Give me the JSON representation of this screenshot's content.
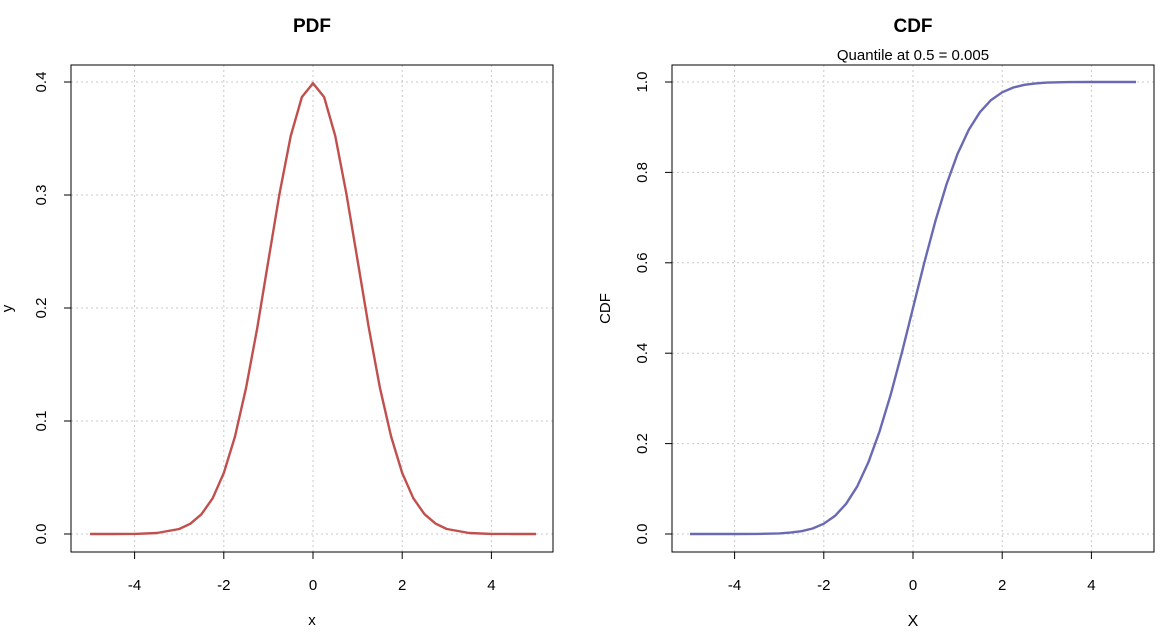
{
  "chart_data": [
    {
      "type": "line",
      "title": "PDF",
      "subtitle": "",
      "xlabel": "x",
      "ylabel": "y",
      "xlim": [
        -5,
        5
      ],
      "ylim": [
        0,
        0.4
      ],
      "x_ticks": [
        -4,
        -2,
        0,
        2,
        4
      ],
      "x_tick_labels": [
        "-4",
        "-2",
        "0",
        "2",
        "4"
      ],
      "y_ticks": [
        0.0,
        0.1,
        0.2,
        0.3,
        0.4
      ],
      "y_tick_labels": [
        "0.0",
        "0.1",
        "0.2",
        "0.3",
        "0.4"
      ],
      "grid": true,
      "series": [
        {
          "color": "#c0504d",
          "x": [
            -5,
            -4.5,
            -4,
            -3.5,
            -3,
            -2.75,
            -2.5,
            -2.25,
            -2,
            -1.75,
            -1.5,
            -1.25,
            -1,
            -0.75,
            -0.5,
            -0.25,
            0,
            0.25,
            0.5,
            0.75,
            1,
            1.25,
            1.5,
            1.75,
            2,
            2.25,
            2.5,
            2.75,
            3,
            3.5,
            4,
            4.5,
            5
          ],
          "y": [
            0.0,
            0.0,
            0.0001,
            0.0009,
            0.0044,
            0.0091,
            0.0175,
            0.0317,
            0.054,
            0.0863,
            0.1295,
            0.1826,
            0.242,
            0.3011,
            0.3521,
            0.3867,
            0.3989,
            0.3867,
            0.3521,
            0.3011,
            0.242,
            0.1826,
            0.1295,
            0.0863,
            0.054,
            0.0317,
            0.0175,
            0.0091,
            0.0044,
            0.0009,
            0.0001,
            0.0,
            0.0
          ]
        }
      ]
    },
    {
      "type": "line",
      "title": "CDF",
      "subtitle": "Quantile at  0.5 = 0.005",
      "xlabel": "X",
      "ylabel": "CDF",
      "xlim": [
        -5,
        5
      ],
      "ylim": [
        0,
        1
      ],
      "x_ticks": [
        -4,
        -2,
        0,
        2,
        4
      ],
      "x_tick_labels": [
        "-4",
        "-2",
        "0",
        "2",
        "4"
      ],
      "y_ticks": [
        0.0,
        0.2,
        0.4,
        0.6,
        0.8,
        1.0
      ],
      "y_tick_labels": [
        "0.0",
        "0.2",
        "0.4",
        "0.6",
        "0.8",
        "1.0"
      ],
      "grid": true,
      "series": [
        {
          "color": "#6a6ab4",
          "x": [
            -5,
            -4.5,
            -4,
            -3.5,
            -3,
            -2.75,
            -2.5,
            -2.25,
            -2,
            -1.75,
            -1.5,
            -1.25,
            -1,
            -0.75,
            -0.5,
            -0.25,
            0,
            0.25,
            0.5,
            0.75,
            1,
            1.25,
            1.5,
            1.75,
            2,
            2.25,
            2.5,
            2.75,
            3,
            3.5,
            4,
            4.5,
            5
          ],
          "y": [
            0.0,
            0.0,
            0.0,
            0.0002,
            0.0013,
            0.003,
            0.0062,
            0.0122,
            0.0228,
            0.0401,
            0.0668,
            0.1056,
            0.1587,
            0.2266,
            0.3085,
            0.4013,
            0.5,
            0.5987,
            0.6915,
            0.7734,
            0.8413,
            0.8944,
            0.9332,
            0.9599,
            0.9772,
            0.9878,
            0.9938,
            0.997,
            0.9987,
            0.9998,
            1.0,
            1.0,
            1.0
          ]
        }
      ]
    }
  ]
}
